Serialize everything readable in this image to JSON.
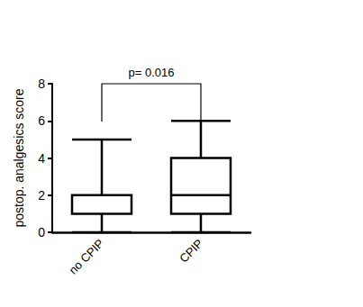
{
  "chart_data": {
    "type": "boxplot",
    "y_label": "postop. analgesics score",
    "categories": [
      "no CPIP",
      "CPIP"
    ],
    "values": [
      [
        0,
        1,
        2,
        2,
        5
      ],
      [
        0,
        1,
        2,
        4,
        6
      ]
    ],
    "color": "#000000",
    "ylim": [
      0,
      8
    ],
    "yticks": [
      0,
      2,
      4,
      6,
      8
    ],
    "grid": false,
    "annotations": [
      {
        "text": "p= 0.016",
        "between": [
          "no CPIP",
          "CPIP"
        ]
      }
    ]
  }
}
